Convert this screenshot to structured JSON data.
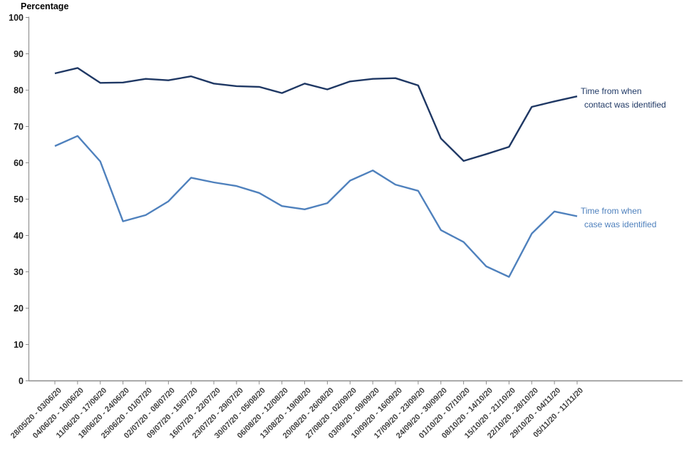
{
  "chart_data": {
    "type": "line",
    "title": "Percentage",
    "ylabel": "Percentage",
    "xlabel": "",
    "ylim": [
      0,
      100
    ],
    "yticks": [
      0,
      10,
      20,
      30,
      40,
      50,
      60,
      70,
      80,
      90,
      100
    ],
    "grid": false,
    "legend_position": "end-of-line annotations, right of last data point",
    "axis_color": "#8c8c8c",
    "y_tick_label_color": "#1a1a1a",
    "x_tick_label_color": "#404040",
    "categories": [
      "28/05/20 - 03/06/20",
      "04/06/20 - 10/06/20",
      "11/06/20 - 17/06/20",
      "18/06/20 - 24/06/20",
      "25/06/20 - 01/07/20",
      "02/07/20 - 08/07/20",
      "09/07/20 - 15/07/20",
      "16/07/20 - 22/07/20",
      "23/07/20 - 29/07/20",
      "30/07/20 - 05/08/20",
      "06/08/20 - 12/08/20",
      "13/08/20 - 19/08/20",
      "20/08/20 - 26/08/20",
      "27/08/20 - 02/09/20",
      "03/09/20 - 09/09/20",
      "10/09/20 - 16/09/20",
      "17/09/20 - 23/09/20",
      "24/09/20 - 30/09/20",
      "01/10/20 - 07/10/20",
      "08/10/20 - 14/10/20",
      "15/10/20 - 21/10/20",
      "22/10/20 - 28/10/20",
      "29/10/20 - 04/11/20",
      "05/11/20 - 11/11/20"
    ],
    "series": [
      {
        "key": "contact-identified",
        "name": "Time from when contact was identified",
        "label_lines": [
          "Time from when",
          "contact was identified"
        ],
        "color": "#1f3864",
        "values": [
          84.6,
          86.1,
          82.0,
          82.1,
          83.1,
          82.7,
          83.8,
          81.8,
          81.1,
          80.9,
          79.2,
          81.8,
          80.2,
          82.4,
          83.1,
          83.3,
          81.3,
          66.7,
          60.5,
          62.4,
          64.4,
          75.4,
          76.9,
          78.3
        ]
      },
      {
        "key": "case-identified",
        "name": "Time from when case was identified",
        "label_lines": [
          "Time from when",
          "case was identified"
        ],
        "color": "#4f81bd",
        "values": [
          64.6,
          67.4,
          60.4,
          43.9,
          45.6,
          49.4,
          55.9,
          54.6,
          53.6,
          51.7,
          48.1,
          47.2,
          48.9,
          55.1,
          57.9,
          54.0,
          52.3,
          41.5,
          38.2,
          31.5,
          28.6,
          40.5,
          46.6,
          45.3
        ]
      }
    ]
  }
}
